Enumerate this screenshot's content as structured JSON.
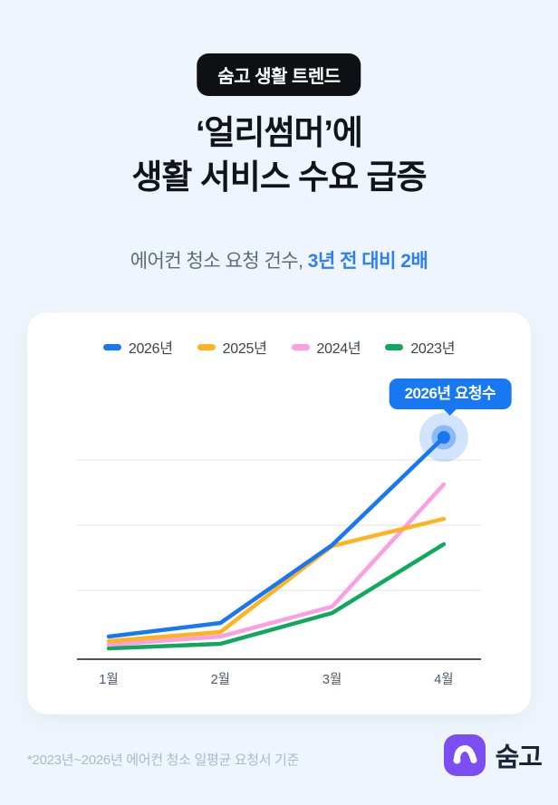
{
  "badge": {
    "label": "숨고 생활 트렌드"
  },
  "title": {
    "line1": "‘얼리썸머’에",
    "line2": "생활 서비스 수요 급증"
  },
  "subtitle": {
    "prefix": "에어컨 청소 요청 건수, ",
    "highlight": "3년 전 대비 2배"
  },
  "chart_data": {
    "type": "line",
    "categories": [
      "1월",
      "2월",
      "3월",
      "4월"
    ],
    "series": [
      {
        "name": "2026년",
        "color": "#1778F2",
        "values": [
          25,
          40,
          126,
          245
        ]
      },
      {
        "name": "2025년",
        "color": "#FFB320",
        "values": [
          20,
          30,
          125,
          155
        ]
      },
      {
        "name": "2024년",
        "color": "#FB9EE3",
        "values": [
          16,
          25,
          58,
          193
        ]
      },
      {
        "name": "2023년",
        "color": "#0FA85C",
        "values": [
          12,
          17,
          51,
          127
        ]
      }
    ],
    "ylim": [
      0,
      300
    ],
    "gridline_values": [
      76,
      148,
      220
    ],
    "grid": "horizontal",
    "legend_position": "top",
    "x_axis_color": "#4F565E",
    "gridline_color": "#EBEBED",
    "tick_label_color": "#4E5968",
    "annotation": {
      "label": "2026년 요청수",
      "series": "2026년",
      "category": "4월"
    }
  },
  "footnote": "*2023년~2026년 에어컨 청소 일평균 요청서 기준",
  "logo": {
    "text": "숨고"
  },
  "colors": {
    "background": "#EEF5FC",
    "card": "#FFFFFF",
    "badge_bg": "#0E1013",
    "title": "#111418",
    "subtitle_accent": "#2F7FF0",
    "logo_purple": "#7B4EF2"
  }
}
